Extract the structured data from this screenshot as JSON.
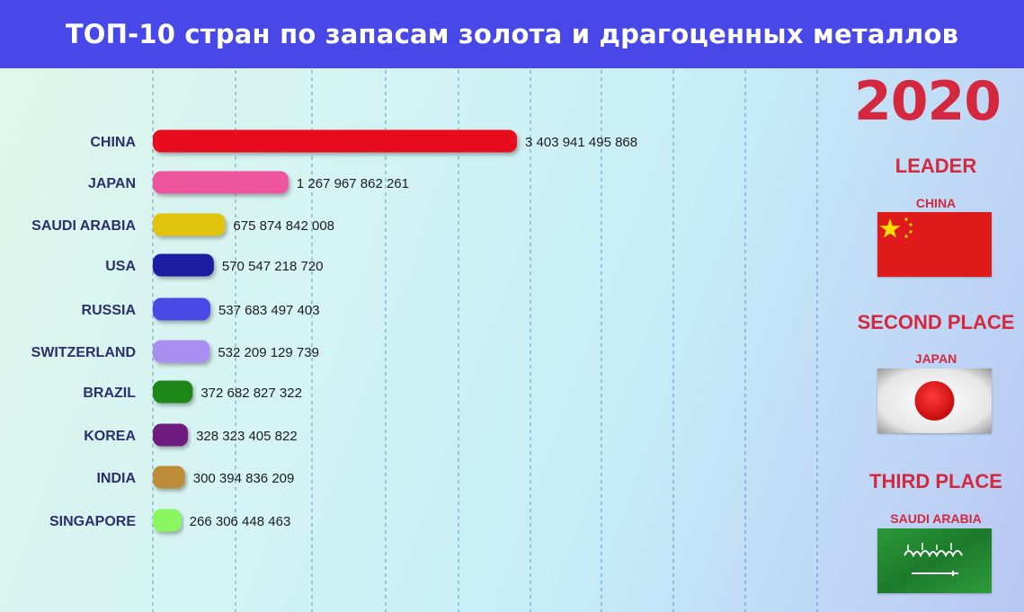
{
  "title": "ТОП-10 стран по запасам золота и драгоценных металлов",
  "year": "2020",
  "places": {
    "first": {
      "heading": "LEADER",
      "country": "CHINA",
      "flag_icon": "china-flag-icon"
    },
    "second": {
      "heading": "SECOND PLACE",
      "country": "JAPAN",
      "flag_icon": "japan-flag-icon"
    },
    "third": {
      "heading": "THIRD PLACE",
      "country": "SAUDI ARABIA",
      "flag_icon": "saudi-arabia-flag-icon"
    }
  },
  "colors": {
    "title_bar": "#4848e8",
    "accent_red": "#d4283e",
    "grid_line": "#3a7bb8"
  },
  "chart_data": {
    "type": "bar",
    "orientation": "horizontal",
    "categories": [
      "CHINA",
      "JAPAN",
      "SAUDI ARABIA",
      "USA",
      "RUSSIA",
      "SWITZERLAND",
      "BRAZIL",
      "KOREA",
      "INDIA",
      "SINGAPORE"
    ],
    "values": [
      3403941495868,
      1267967862261,
      675874842008,
      570547218720,
      537683497403,
      532209129739,
      372682827322,
      328323405822,
      300394836209,
      266306448463
    ],
    "value_labels": [
      "3 403 941 495 868",
      "1 267 967 862 261",
      "675 874 842 008",
      "570 547 218 720",
      "537 683 497 403",
      "532 209 129 739",
      "372 682 827 322",
      "328 323 405 822",
      "300 394 836 209",
      "266 306 448 463"
    ],
    "colors": [
      "#e8111c",
      "#ee559e",
      "#e0c410",
      "#1c1aa0",
      "#4a4ae6",
      "#ab8ef2",
      "#1b8718",
      "#6e1a80",
      "#bc8c38",
      "#8af760"
    ],
    "grid": true,
    "title": "",
    "xlabel": "",
    "ylabel": ""
  }
}
